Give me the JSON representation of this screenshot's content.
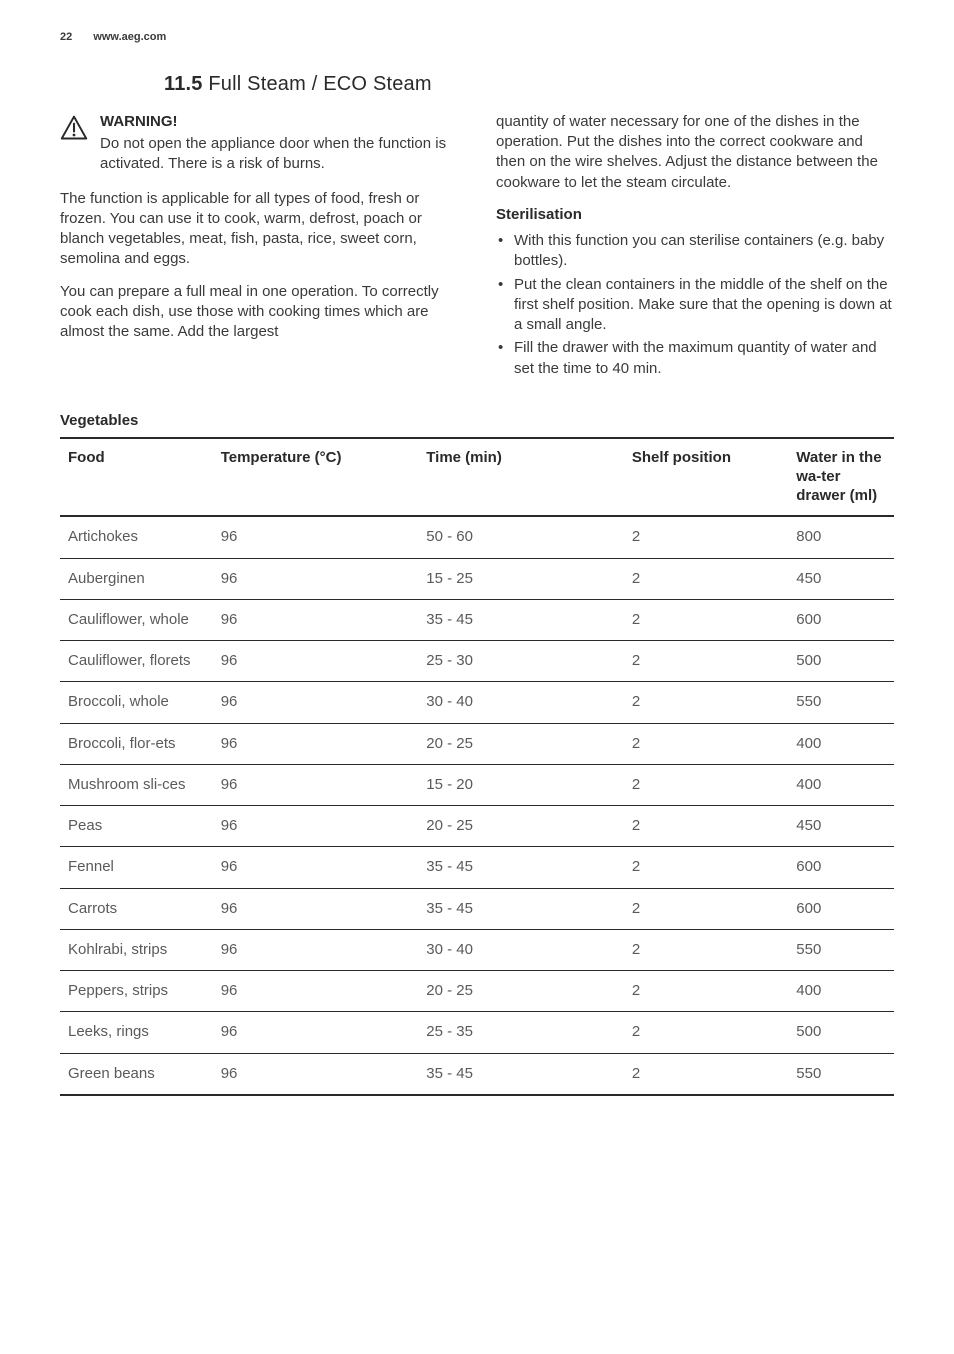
{
  "header": {
    "page_number": "22",
    "site": "www.aeg.com"
  },
  "section": {
    "number": "11.5",
    "title": "Full Steam / ECO Steam"
  },
  "warning": {
    "label": "WARNING!",
    "body": "Do not open the appliance door when the function is activated. There is a risk of burns."
  },
  "left": {
    "para1": "The function is applicable for all types of food, fresh or frozen. You can use it to cook, warm, defrost, poach or blanch vegetables, meat, fish, pasta, rice, sweet corn, semolina and eggs.",
    "para2": "You can prepare a full meal in one operation. To correctly cook each dish, use those with cooking times which are almost the same. Add the largest"
  },
  "right": {
    "cont": "quantity of water necessary for one of the dishes in the operation. Put the dishes into the correct cookware and then on the wire shelves. Adjust the distance between the cookware to let the steam circulate.",
    "sterilisation": {
      "heading": "Sterilisation",
      "items": [
        "With this function you can sterilise containers (e.g. baby bottles).",
        "Put the clean containers in the middle of the shelf on the first shelf position. Make sure that the opening is down at a small angle.",
        "Fill the drawer with the maximum quantity of water and set the time to 40 min."
      ]
    }
  },
  "table": {
    "title": "Vegetables",
    "columns": [
      "Food",
      "Temperature (°C)",
      "Time (min)",
      "Shelf position",
      "Water in the wa‐ter drawer (ml)"
    ],
    "rows": [
      {
        "food": "Artichokes",
        "temp": "96",
        "time": "50 - 60",
        "shelf": "2",
        "water": "800"
      },
      {
        "food": "Auberginen",
        "temp": "96",
        "time": "15 - 25",
        "shelf": "2",
        "water": "450"
      },
      {
        "food": "Cauliflower, whole",
        "temp": "96",
        "time": "35 - 45",
        "shelf": "2",
        "water": "600"
      },
      {
        "food": "Cauliflower, florets",
        "temp": "96",
        "time": "25 - 30",
        "shelf": "2",
        "water": "500"
      },
      {
        "food": "Broccoli, whole",
        "temp": "96",
        "time": "30 - 40",
        "shelf": "2",
        "water": "550"
      },
      {
        "food": "Broccoli, flor‐ets",
        "temp": "96",
        "time": "20 - 25",
        "shelf": "2",
        "water": "400"
      },
      {
        "food": "Mushroom sli‐ces",
        "temp": "96",
        "time": "15 - 20",
        "shelf": "2",
        "water": "400"
      },
      {
        "food": "Peas",
        "temp": "96",
        "time": "20 - 25",
        "shelf": "2",
        "water": "450"
      },
      {
        "food": "Fennel",
        "temp": "96",
        "time": "35 - 45",
        "shelf": "2",
        "water": "600"
      },
      {
        "food": "Carrots",
        "temp": "96",
        "time": "35 - 45",
        "shelf": "2",
        "water": "600"
      },
      {
        "food": "Kohlrabi, strips",
        "temp": "96",
        "time": "30 - 40",
        "shelf": "2",
        "water": "550"
      },
      {
        "food": "Peppers, strips",
        "temp": "96",
        "time": "20 - 25",
        "shelf": "2",
        "water": "400"
      },
      {
        "food": "Leeks, rings",
        "temp": "96",
        "time": "25 - 35",
        "shelf": "2",
        "water": "500"
      },
      {
        "food": "Green beans",
        "temp": "96",
        "time": "35 - 45",
        "shelf": "2",
        "water": "550"
      }
    ]
  }
}
